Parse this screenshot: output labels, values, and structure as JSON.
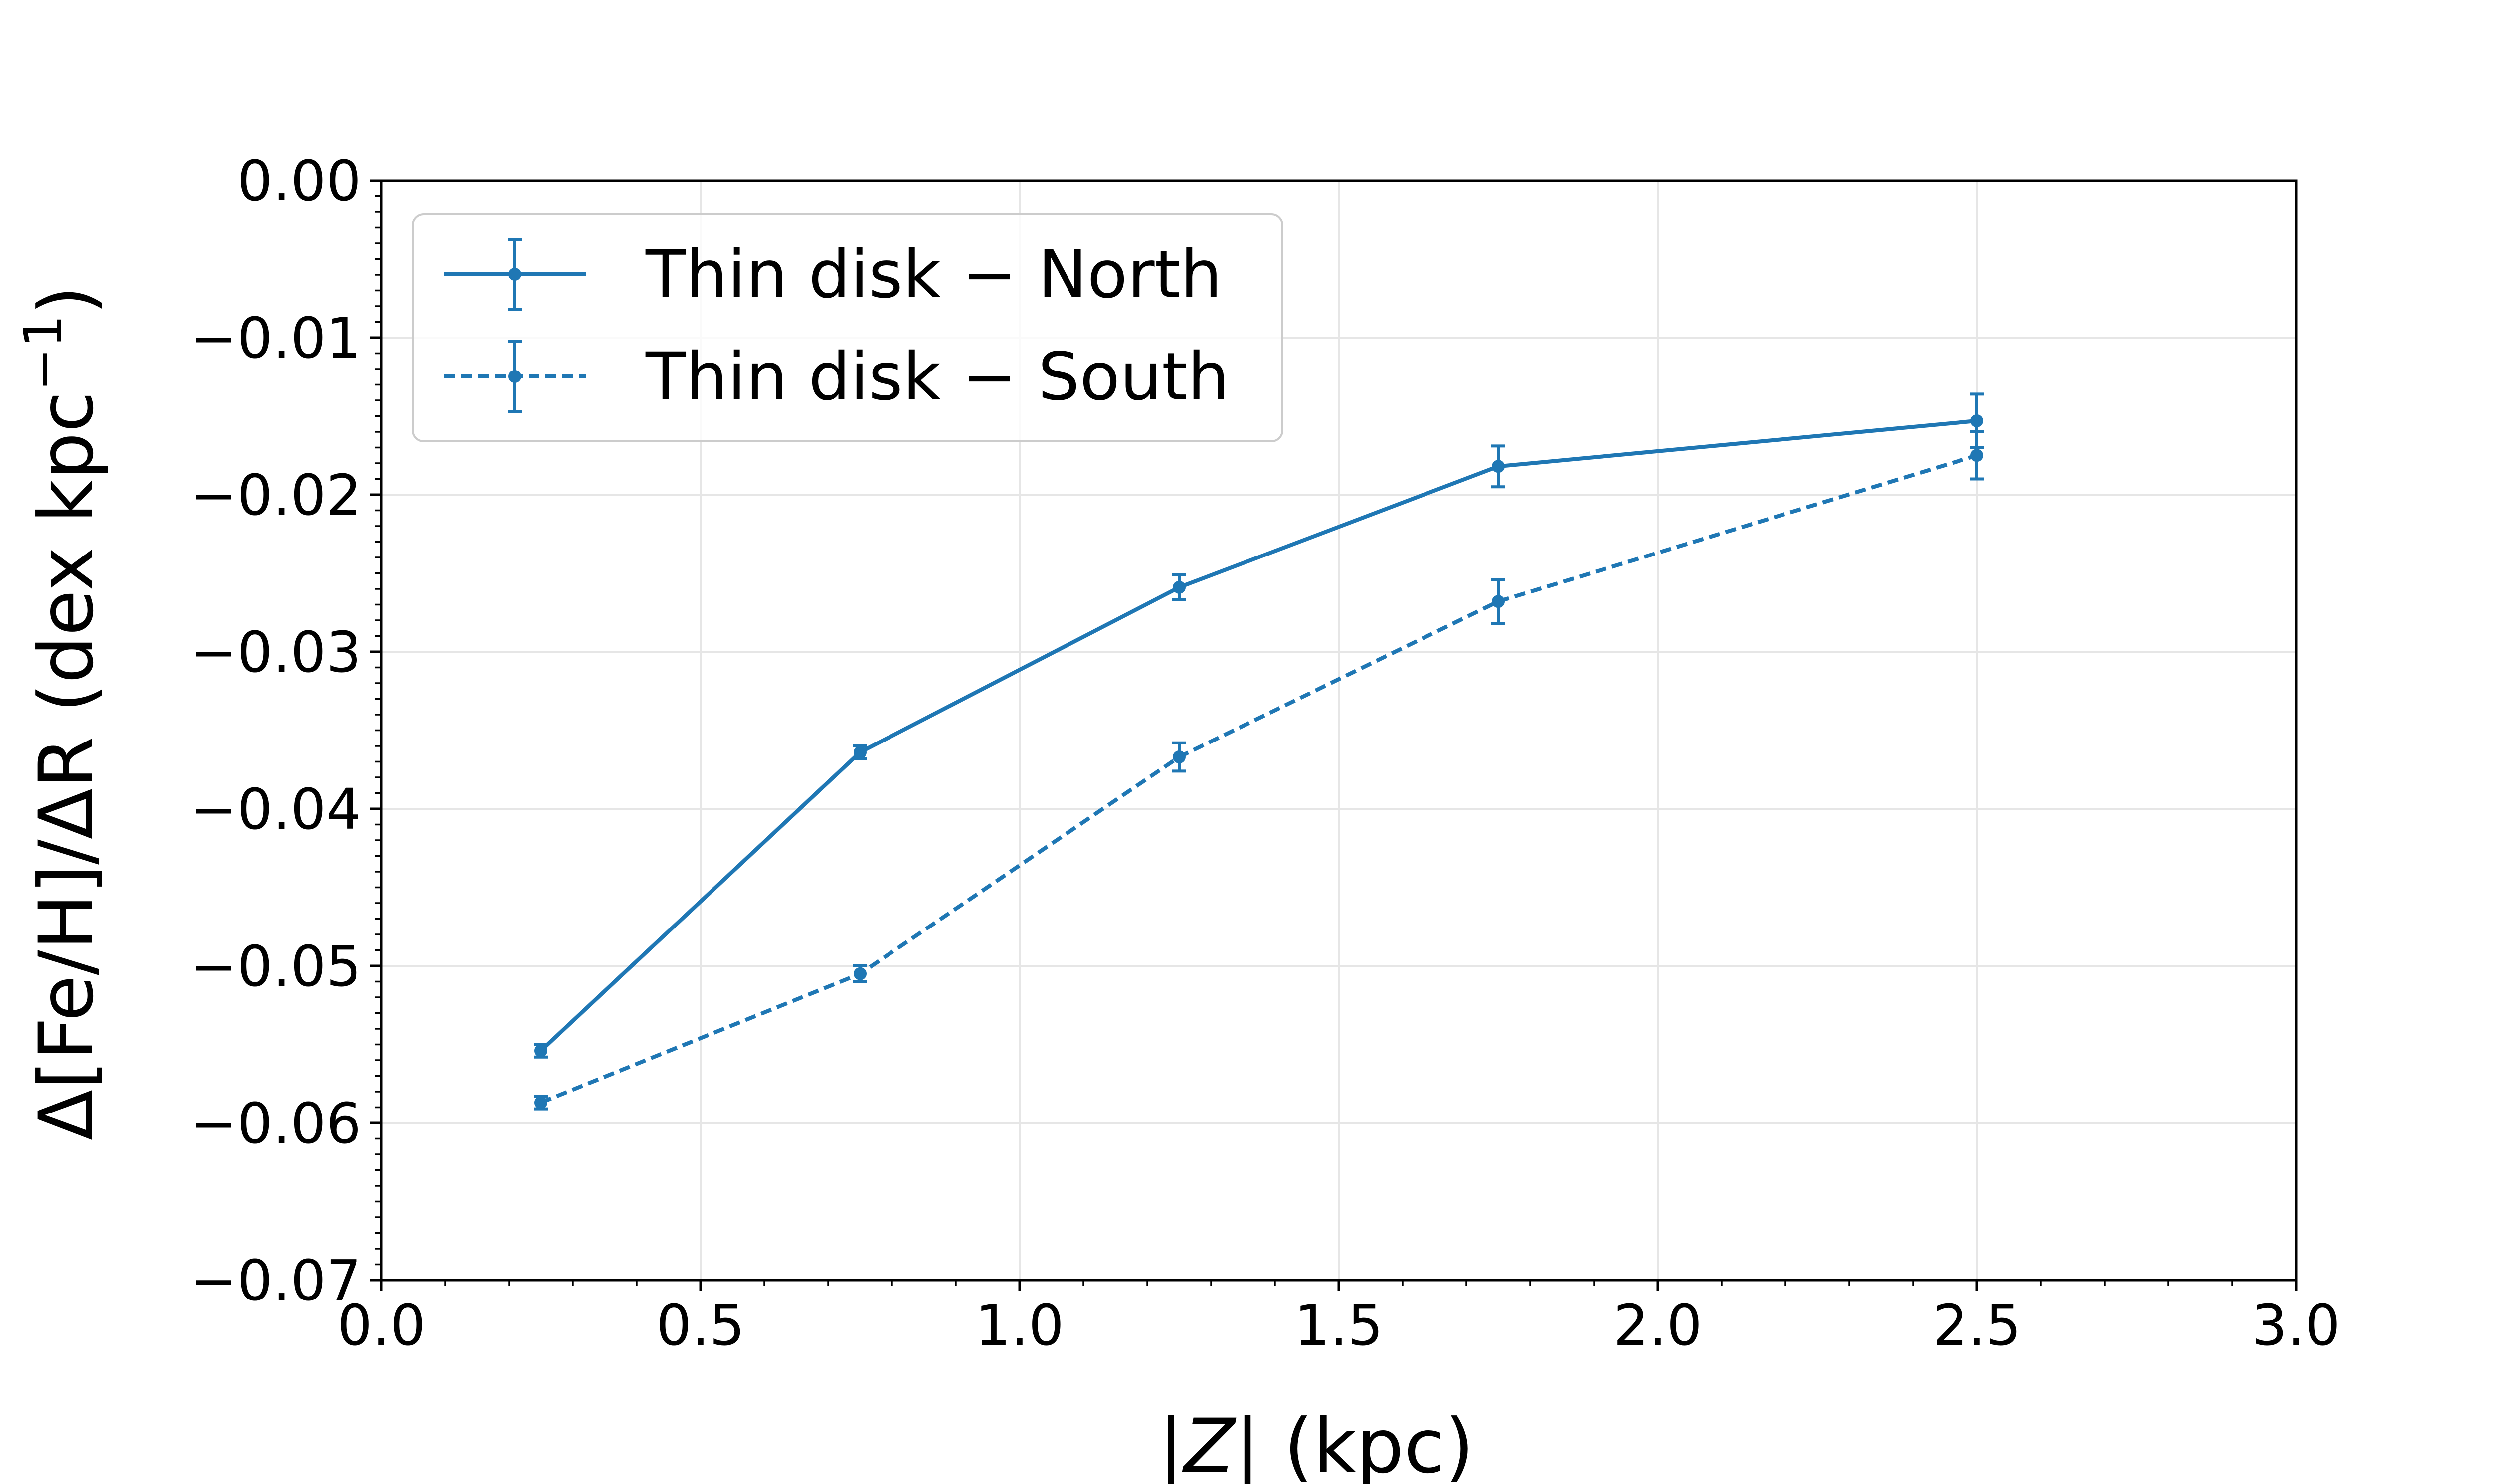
{
  "chart_data": {
    "type": "line",
    "xlabel_prefix": "|",
    "xlabel_var": "Z",
    "xlabel_suffix": "| (kpc)",
    "ylabel_main": "Δ[Fe/H]/ΔR (dex kpc",
    "ylabel_sup": "−1",
    "ylabel_close": ")",
    "xlim": [
      0.0,
      3.0
    ],
    "ylim": [
      -0.07,
      0.0
    ],
    "xticks": [
      "0.0",
      "0.5",
      "1.0",
      "1.5",
      "2.0",
      "2.5",
      "3.0"
    ],
    "yticks": [
      "0.00",
      "−0.01",
      "−0.02",
      "−0.03",
      "−0.04",
      "−0.05",
      "−0.06",
      "−0.07"
    ],
    "grid": true,
    "legend_position": "top-left",
    "series": [
      {
        "name": "Thin disk − North",
        "line_style": "solid",
        "color": "#1f77b4",
        "x": [
          0.25,
          0.75,
          1.25,
          1.75,
          2.5
        ],
        "y": [
          -0.0554,
          -0.0364,
          -0.0259,
          -0.0182,
          -0.0153
        ],
        "yerr": [
          0.0004,
          0.0004,
          0.0008,
          0.0013,
          0.0017
        ]
      },
      {
        "name": "Thin disk − South",
        "line_style": "dashed",
        "color": "#1f77b4",
        "x": [
          0.25,
          0.75,
          1.25,
          1.75,
          2.5
        ],
        "y": [
          -0.0587,
          -0.0505,
          -0.0367,
          -0.0268,
          -0.0175
        ],
        "yerr": [
          0.0004,
          0.0005,
          0.0009,
          0.0014,
          0.0015
        ]
      }
    ]
  }
}
